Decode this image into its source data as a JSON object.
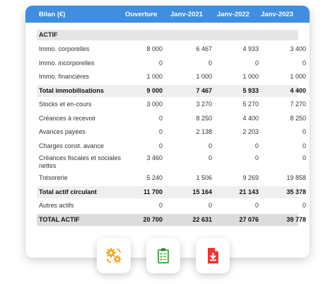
{
  "header": {
    "title": "Bilan (€)",
    "columns": [
      "Ouverture",
      "Janv-2021",
      "Janv-2022",
      "Janv-2023"
    ]
  },
  "section": "ACTIF",
  "rows": [
    {
      "label": "Immo. corporelles",
      "values": [
        "8 000",
        "6 467",
        "4 933",
        "3 400"
      ],
      "style": "normal"
    },
    {
      "label": "Immo. incorporelles",
      "values": [
        "0",
        "0",
        "0",
        "0"
      ],
      "style": "normal"
    },
    {
      "label": "Immo. financières",
      "values": [
        "1 000",
        "1 000",
        "1 000",
        "1 000"
      ],
      "style": "normal"
    },
    {
      "label": "Total immobilisations",
      "values": [
        "9 000",
        "7 467",
        "5 933",
        "4 400"
      ],
      "style": "total"
    },
    {
      "label": "Stocks et en-cours",
      "values": [
        "3 000",
        "3 270",
        "5 270",
        "7 270"
      ],
      "style": "normal"
    },
    {
      "label": "Créances à recevoir",
      "values": [
        "0",
        "8 250",
        "4 400",
        "8 250"
      ],
      "style": "normal"
    },
    {
      "label": "Avances payées",
      "values": [
        "0",
        "2 138",
        "2 203",
        "0"
      ],
      "style": "normal"
    },
    {
      "label": "Charges const. avance",
      "values": [
        "0",
        "0",
        "0",
        "0"
      ],
      "style": "normal"
    },
    {
      "label": "Créances fiscales et sociales nettes",
      "values": [
        "3 460",
        "0",
        "0",
        "0"
      ],
      "style": "tall"
    },
    {
      "label": "Trésorerie",
      "values": [
        "5 240",
        "1 506",
        "9 269",
        "19 858"
      ],
      "style": "normal"
    },
    {
      "label": "Total actif circulant",
      "values": [
        "11 700",
        "15 164",
        "21 143",
        "35 378"
      ],
      "style": "total"
    },
    {
      "label": "Autres actifs",
      "values": [
        "0",
        "0",
        "0",
        "0"
      ],
      "style": "normal"
    },
    {
      "label": "TOTAL ACTIF",
      "values": [
        "20 700",
        "22 631",
        "27 076",
        "39 778"
      ],
      "style": "grand"
    }
  ],
  "icons": [
    {
      "name": "gears-icon",
      "color": "#f5a623"
    },
    {
      "name": "clipboard-checklist-icon",
      "color": "#4caf50"
    },
    {
      "name": "pdf-download-icon",
      "color": "#e53935"
    }
  ]
}
